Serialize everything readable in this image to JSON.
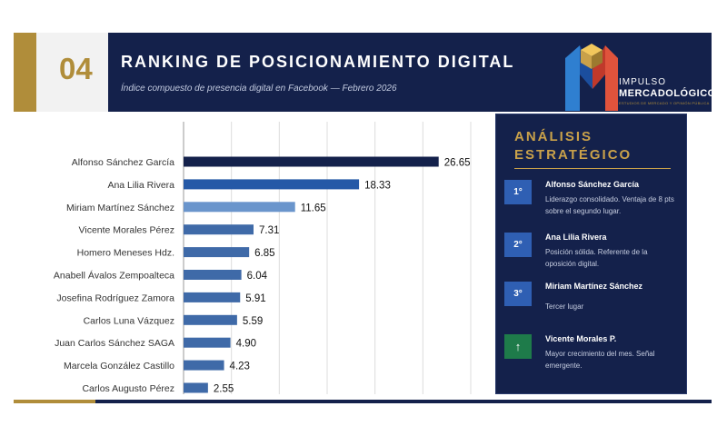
{
  "header": {
    "number": "04",
    "title": "RANKING DE POSICIONAMIENTO DIGITAL",
    "subtitle": "Índice compuesto de presencia digital en Facebook — Febrero 2026"
  },
  "logo": {
    "line1": "IMPULSO",
    "line2": "MERCADOLÓGICO",
    "tagline": "ESTUDIOS DE MERCADO Y OPINIÓN PÚBLICA"
  },
  "chart_data": {
    "type": "bar",
    "orientation": "horizontal",
    "categories": [
      "Alfonso Sánchez García",
      "Ana Lilia Rivera",
      "Miriam Martínez Sánchez",
      "Vicente Morales Pérez",
      "Homero Meneses Hdz.",
      "Anabell Ávalos Zempoalteca",
      "Josefina Rodríguez Zamora",
      "Carlos Luna Vázquez",
      "Juan Carlos Sánchez SAGA",
      "Marcela González Castillo",
      "Carlos Augusto Pérez"
    ],
    "values": [
      26.65,
      18.33,
      11.65,
      7.31,
      6.85,
      6.04,
      5.91,
      5.59,
      4.9,
      4.23,
      2.55
    ],
    "value_labels": [
      "26.65",
      "18.33",
      "11.65",
      "7.31",
      "6.85",
      "6.04",
      "5.91",
      "5.59",
      "4.90",
      "4.23",
      "2.55"
    ],
    "bar_colors": [
      "#14214b",
      "#2559a7",
      "#6a95cc",
      "#3f6aa8",
      "#3f6aa8",
      "#3f6aa8",
      "#3f6aa8",
      "#3f6aa8",
      "#3f6aa8",
      "#3f6aa8",
      "#3f6aa8"
    ],
    "xlim": [
      0,
      30
    ],
    "xticks": [
      "0",
      "5",
      "10",
      "15",
      "20",
      "25",
      "30"
    ],
    "grid": true
  },
  "panel": {
    "title": "ANÁLISIS ESTRATÉGICO",
    "items": [
      {
        "badge": "1°",
        "name": "Alfonso Sánchez García",
        "desc": "Liderazgo consolidado. Ventaja de 8 pts sobre el segundo lugar."
      },
      {
        "badge": "2°",
        "name": "Ana Lilia Rivera",
        "desc": "Posición sólida. Referente de la oposición digital."
      },
      {
        "badge": "3°",
        "name": "Miriam Martínez Sánchez",
        "desc": "Tercer lugar"
      },
      {
        "badge": "↑",
        "name": "Vicente Morales P.",
        "desc": "Mayor crecimiento del mes. Señal emergente."
      }
    ]
  },
  "colors": {
    "navy": "#14214b",
    "gold": "#b08d3a",
    "green": "#1e7b4a",
    "badge_blue": "#2f5fb3"
  }
}
